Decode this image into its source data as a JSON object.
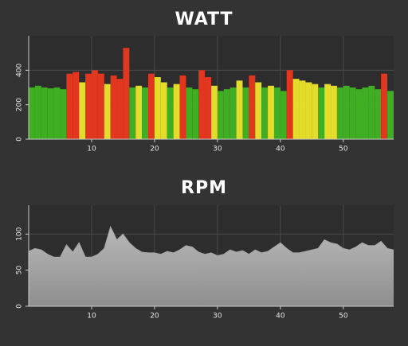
{
  "chart_data": [
    {
      "type": "bar",
      "title": "WATT",
      "x": [
        0.5,
        1.5,
        2.5,
        3.5,
        4.5,
        5.5,
        6.5,
        7.5,
        8.5,
        9.5,
        10.5,
        11.5,
        12.5,
        13.5,
        14.5,
        15.5,
        16.5,
        17.5,
        18.5,
        19.5,
        20.5,
        21.5,
        22.5,
        23.5,
        24.5,
        25.5,
        26.5,
        27.5,
        28.5,
        29.5,
        30.5,
        31.5,
        32.5,
        33.5,
        34.5,
        35.5,
        36.5,
        37.5,
        38.5,
        39.5,
        40.5,
        41.5,
        42.5,
        43.5,
        44.5,
        45.5,
        46.5,
        47.5,
        48.5,
        49.5,
        50.5,
        51.5,
        52.5,
        53.5,
        54.5,
        55.5,
        56.5,
        57.5
      ],
      "values": [
        300,
        310,
        300,
        295,
        300,
        290,
        380,
        390,
        330,
        380,
        400,
        380,
        320,
        370,
        350,
        530,
        300,
        310,
        300,
        380,
        360,
        330,
        300,
        320,
        370,
        300,
        290,
        400,
        360,
        310,
        280,
        290,
        300,
        340,
        300,
        370,
        330,
        300,
        310,
        300,
        280,
        400,
        350,
        340,
        330,
        320,
        300,
        320,
        310,
        300,
        310,
        300,
        290,
        300,
        310,
        290,
        380,
        280
      ],
      "colors": [
        "#3fae22",
        "#3fae22",
        "#3fae22",
        "#3fae22",
        "#3fae22",
        "#3fae22",
        "#e2361f",
        "#e2361f",
        "#e4dc2a",
        "#e2361f",
        "#e2361f",
        "#e2361f",
        "#e4dc2a",
        "#e2361f",
        "#e2361f",
        "#e2361f",
        "#3fae22",
        "#e4dc2a",
        "#3fae22",
        "#e2361f",
        "#e4dc2a",
        "#e4dc2a",
        "#3fae22",
        "#e4dc2a",
        "#e2361f",
        "#3fae22",
        "#3fae22",
        "#e2361f",
        "#e2361f",
        "#e4dc2a",
        "#3fae22",
        "#3fae22",
        "#3fae22",
        "#e4dc2a",
        "#3fae22",
        "#e2361f",
        "#e4dc2a",
        "#3fae22",
        "#e4dc2a",
        "#3fae22",
        "#3fae22",
        "#e2361f",
        "#e4dc2a",
        "#e4dc2a",
        "#e4dc2a",
        "#e4dc2a",
        "#3fae22",
        "#e4dc2a",
        "#e4dc2a",
        "#3fae22",
        "#3fae22",
        "#3fae22",
        "#3fae22",
        "#3fae22",
        "#3fae22",
        "#3fae22",
        "#e2361f",
        "#3fae22"
      ],
      "xlim": [
        0,
        58
      ],
      "xticks": [
        10,
        20,
        30,
        40,
        50
      ],
      "ylim": [
        0,
        600
      ],
      "yticks": [
        0,
        200,
        400
      ],
      "grid": true
    },
    {
      "type": "area",
      "title": "RPM",
      "x": [
        0,
        1,
        2,
        3,
        4,
        5,
        6,
        7,
        8,
        9,
        10,
        11,
        12,
        13,
        14,
        15,
        16,
        17,
        18,
        19,
        20,
        21,
        22,
        23,
        24,
        25,
        26,
        27,
        28,
        29,
        30,
        31,
        32,
        33,
        34,
        35,
        36,
        37,
        38,
        39,
        40,
        41,
        42,
        43,
        44,
        45,
        46,
        47,
        48,
        49,
        50,
        51,
        52,
        53,
        54,
        55,
        56,
        57,
        58
      ],
      "values": [
        76,
        80,
        78,
        72,
        68,
        68,
        85,
        75,
        88,
        68,
        68,
        72,
        80,
        110,
        92,
        100,
        88,
        80,
        75,
        74,
        74,
        72,
        76,
        74,
        78,
        84,
        82,
        75,
        72,
        74,
        70,
        72,
        78,
        75,
        77,
        72,
        78,
        74,
        76,
        82,
        88,
        80,
        74,
        74,
        76,
        78,
        80,
        92,
        88,
        86,
        80,
        78,
        82,
        88,
        84,
        84,
        90,
        80,
        78
      ],
      "color": "#a4a4a4",
      "xlim": [
        0,
        58
      ],
      "xticks": [
        10,
        20,
        30,
        40,
        50
      ],
      "ylim": [
        0,
        140
      ],
      "yticks": [
        0,
        50,
        100
      ],
      "grid": true
    }
  ]
}
